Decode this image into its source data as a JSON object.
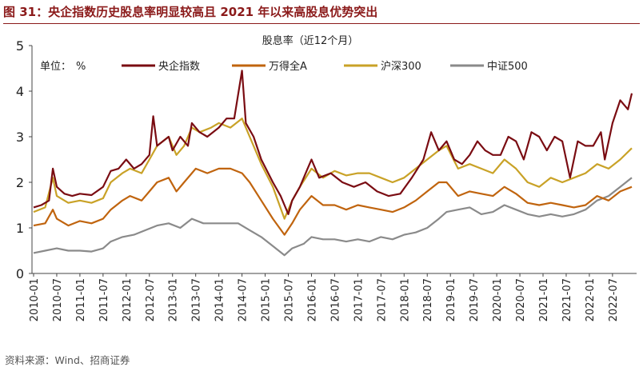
{
  "header": {
    "title": "图 31：央企指数历史股息率明显较高且 2021 年以来高股息优势突出"
  },
  "footer": {
    "source": "资料来源：Wind、招商证券"
  },
  "chart_data": {
    "type": "line",
    "title": "股息率（近12个月）",
    "unit_label": "单位：",
    "unit": "%",
    "ylim": [
      0,
      5
    ],
    "yticks": [
      0,
      1,
      2,
      3,
      4,
      5
    ],
    "x_range": [
      "2010-01",
      "2022-12"
    ],
    "xtick_labels": [
      "2010-01",
      "2010-07",
      "2011-01",
      "2011-07",
      "2012-01",
      "2012-07",
      "2013-01",
      "2013-07",
      "2014-01",
      "2014-07",
      "2015-01",
      "2015-07",
      "2016-01",
      "2016-07",
      "2017-01",
      "2017-07",
      "2018-01",
      "2018-07",
      "2019-01",
      "2019-07",
      "2020-01",
      "2020-07",
      "2021-01",
      "2021-07",
      "2022-01",
      "2022-07"
    ],
    "grid": false,
    "legend_position": "top",
    "series": [
      {
        "name": "央企指数",
        "color": "#7a0c12",
        "points": [
          [
            "2010-01",
            1.45
          ],
          [
            "2010-03",
            1.5
          ],
          [
            "2010-05",
            1.6
          ],
          [
            "2010-06",
            2.3
          ],
          [
            "2010-07",
            1.9
          ],
          [
            "2010-09",
            1.75
          ],
          [
            "2010-11",
            1.7
          ],
          [
            "2011-01",
            1.75
          ],
          [
            "2011-04",
            1.72
          ],
          [
            "2011-07",
            1.9
          ],
          [
            "2011-09",
            2.25
          ],
          [
            "2011-11",
            2.3
          ],
          [
            "2012-01",
            2.5
          ],
          [
            "2012-03",
            2.3
          ],
          [
            "2012-05",
            2.4
          ],
          [
            "2012-07",
            2.6
          ],
          [
            "2012-08",
            3.45
          ],
          [
            "2012-09",
            2.8
          ],
          [
            "2012-12",
            3.0
          ],
          [
            "2013-01",
            2.7
          ],
          [
            "2013-03",
            3.0
          ],
          [
            "2013-05",
            2.8
          ],
          [
            "2013-06",
            3.3
          ],
          [
            "2013-08",
            3.1
          ],
          [
            "2013-10",
            3.0
          ],
          [
            "2014-01",
            3.2
          ],
          [
            "2014-03",
            3.4
          ],
          [
            "2014-05",
            3.4
          ],
          [
            "2014-07",
            4.45
          ],
          [
            "2014-08",
            3.3
          ],
          [
            "2014-10",
            3.0
          ],
          [
            "2014-12",
            2.5
          ],
          [
            "2015-03",
            2.0
          ],
          [
            "2015-05",
            1.7
          ],
          [
            "2015-06",
            1.5
          ],
          [
            "2015-07",
            1.3
          ],
          [
            "2015-08",
            1.6
          ],
          [
            "2015-10",
            1.9
          ],
          [
            "2015-12",
            2.3
          ],
          [
            "2016-01",
            2.5
          ],
          [
            "2016-03",
            2.1
          ],
          [
            "2016-06",
            2.2
          ],
          [
            "2016-09",
            2.0
          ],
          [
            "2016-12",
            1.9
          ],
          [
            "2017-03",
            2.0
          ],
          [
            "2017-06",
            1.8
          ],
          [
            "2017-09",
            1.7
          ],
          [
            "2017-12",
            1.75
          ],
          [
            "2018-03",
            2.1
          ],
          [
            "2018-06",
            2.5
          ],
          [
            "2018-08",
            3.1
          ],
          [
            "2018-10",
            2.7
          ],
          [
            "2018-12",
            2.9
          ],
          [
            "2019-02",
            2.5
          ],
          [
            "2019-04",
            2.4
          ],
          [
            "2019-06",
            2.6
          ],
          [
            "2019-08",
            2.9
          ],
          [
            "2019-10",
            2.7
          ],
          [
            "2019-12",
            2.6
          ],
          [
            "2020-02",
            2.6
          ],
          [
            "2020-04",
            3.0
          ],
          [
            "2020-06",
            2.9
          ],
          [
            "2020-08",
            2.5
          ],
          [
            "2020-10",
            3.1
          ],
          [
            "2020-12",
            3.0
          ],
          [
            "2021-02",
            2.7
          ],
          [
            "2021-04",
            3.0
          ],
          [
            "2021-06",
            2.9
          ],
          [
            "2021-08",
            2.1
          ],
          [
            "2021-10",
            2.9
          ],
          [
            "2021-12",
            2.8
          ],
          [
            "2022-02",
            2.8
          ],
          [
            "2022-04",
            3.1
          ],
          [
            "2022-05",
            2.5
          ],
          [
            "2022-07",
            3.3
          ],
          [
            "2022-09",
            3.8
          ],
          [
            "2022-11",
            3.6
          ],
          [
            "2022-12",
            3.95
          ]
        ]
      },
      {
        "name": "万得全A",
        "color": "#c0640e",
        "points": [
          [
            "2010-01",
            1.05
          ],
          [
            "2010-04",
            1.1
          ],
          [
            "2010-06",
            1.4
          ],
          [
            "2010-07",
            1.2
          ],
          [
            "2010-10",
            1.05
          ],
          [
            "2011-01",
            1.15
          ],
          [
            "2011-04",
            1.1
          ],
          [
            "2011-07",
            1.2
          ],
          [
            "2011-09",
            1.4
          ],
          [
            "2011-12",
            1.6
          ],
          [
            "2012-02",
            1.7
          ],
          [
            "2012-05",
            1.6
          ],
          [
            "2012-07",
            1.8
          ],
          [
            "2012-09",
            2.0
          ],
          [
            "2012-12",
            2.1
          ],
          [
            "2013-02",
            1.8
          ],
          [
            "2013-04",
            2.0
          ],
          [
            "2013-06",
            2.2
          ],
          [
            "2013-07",
            2.3
          ],
          [
            "2013-10",
            2.2
          ],
          [
            "2014-01",
            2.3
          ],
          [
            "2014-04",
            2.3
          ],
          [
            "2014-07",
            2.2
          ],
          [
            "2014-09",
            2.0
          ],
          [
            "2014-12",
            1.6
          ],
          [
            "2015-03",
            1.2
          ],
          [
            "2015-06",
            0.85
          ],
          [
            "2015-08",
            1.1
          ],
          [
            "2015-10",
            1.4
          ],
          [
            "2016-01",
            1.7
          ],
          [
            "2016-04",
            1.5
          ],
          [
            "2016-07",
            1.5
          ],
          [
            "2016-10",
            1.4
          ],
          [
            "2017-01",
            1.5
          ],
          [
            "2017-04",
            1.45
          ],
          [
            "2017-07",
            1.4
          ],
          [
            "2017-10",
            1.35
          ],
          [
            "2018-01",
            1.45
          ],
          [
            "2018-04",
            1.6
          ],
          [
            "2018-07",
            1.8
          ],
          [
            "2018-10",
            2.0
          ],
          [
            "2018-12",
            2.0
          ],
          [
            "2019-03",
            1.7
          ],
          [
            "2019-06",
            1.8
          ],
          [
            "2019-09",
            1.75
          ],
          [
            "2019-12",
            1.7
          ],
          [
            "2020-03",
            1.9
          ],
          [
            "2020-06",
            1.75
          ],
          [
            "2020-09",
            1.55
          ],
          [
            "2020-12",
            1.5
          ],
          [
            "2021-03",
            1.55
          ],
          [
            "2021-06",
            1.5
          ],
          [
            "2021-09",
            1.45
          ],
          [
            "2021-12",
            1.5
          ],
          [
            "2022-03",
            1.7
          ],
          [
            "2022-06",
            1.6
          ],
          [
            "2022-09",
            1.8
          ],
          [
            "2022-12",
            1.9
          ]
        ]
      },
      {
        "name": "沪深300",
        "color": "#c9a227",
        "points": [
          [
            "2010-01",
            1.35
          ],
          [
            "2010-04",
            1.45
          ],
          [
            "2010-06",
            2.1
          ],
          [
            "2010-07",
            1.7
          ],
          [
            "2010-10",
            1.55
          ],
          [
            "2011-01",
            1.6
          ],
          [
            "2011-04",
            1.55
          ],
          [
            "2011-07",
            1.65
          ],
          [
            "2011-09",
            2.0
          ],
          [
            "2011-12",
            2.2
          ],
          [
            "2012-02",
            2.3
          ],
          [
            "2012-05",
            2.2
          ],
          [
            "2012-07",
            2.5
          ],
          [
            "2012-09",
            2.8
          ],
          [
            "2012-12",
            3.0
          ],
          [
            "2013-02",
            2.6
          ],
          [
            "2013-04",
            2.8
          ],
          [
            "2013-06",
            3.2
          ],
          [
            "2013-08",
            3.1
          ],
          [
            "2013-11",
            3.2
          ],
          [
            "2014-01",
            3.3
          ],
          [
            "2014-04",
            3.2
          ],
          [
            "2014-07",
            3.4
          ],
          [
            "2014-09",
            3.0
          ],
          [
            "2014-12",
            2.4
          ],
          [
            "2015-03",
            1.9
          ],
          [
            "2015-06",
            1.2
          ],
          [
            "2015-08",
            1.6
          ],
          [
            "2015-10",
            1.9
          ],
          [
            "2016-01",
            2.3
          ],
          [
            "2016-04",
            2.1
          ],
          [
            "2016-07",
            2.25
          ],
          [
            "2016-10",
            2.15
          ],
          [
            "2017-01",
            2.2
          ],
          [
            "2017-04",
            2.2
          ],
          [
            "2017-07",
            2.1
          ],
          [
            "2017-10",
            2.0
          ],
          [
            "2018-01",
            2.1
          ],
          [
            "2018-04",
            2.3
          ],
          [
            "2018-07",
            2.5
          ],
          [
            "2018-10",
            2.7
          ],
          [
            "2018-12",
            2.8
          ],
          [
            "2019-03",
            2.3
          ],
          [
            "2019-06",
            2.4
          ],
          [
            "2019-09",
            2.3
          ],
          [
            "2019-12",
            2.2
          ],
          [
            "2020-03",
            2.5
          ],
          [
            "2020-06",
            2.3
          ],
          [
            "2020-09",
            2.0
          ],
          [
            "2020-12",
            1.9
          ],
          [
            "2021-03",
            2.1
          ],
          [
            "2021-06",
            2.0
          ],
          [
            "2021-09",
            2.1
          ],
          [
            "2021-12",
            2.2
          ],
          [
            "2022-03",
            2.4
          ],
          [
            "2022-06",
            2.3
          ],
          [
            "2022-09",
            2.5
          ],
          [
            "2022-12",
            2.75
          ]
        ]
      },
      {
        "name": "中证500",
        "color": "#8a8a8a",
        "points": [
          [
            "2010-01",
            0.45
          ],
          [
            "2010-04",
            0.5
          ],
          [
            "2010-07",
            0.55
          ],
          [
            "2010-10",
            0.5
          ],
          [
            "2011-01",
            0.5
          ],
          [
            "2011-04",
            0.48
          ],
          [
            "2011-07",
            0.55
          ],
          [
            "2011-09",
            0.7
          ],
          [
            "2011-12",
            0.8
          ],
          [
            "2012-03",
            0.85
          ],
          [
            "2012-06",
            0.95
          ],
          [
            "2012-09",
            1.05
          ],
          [
            "2012-12",
            1.1
          ],
          [
            "2013-03",
            1.0
          ],
          [
            "2013-06",
            1.2
          ],
          [
            "2013-09",
            1.1
          ],
          [
            "2013-12",
            1.1
          ],
          [
            "2014-03",
            1.1
          ],
          [
            "2014-06",
            1.1
          ],
          [
            "2014-09",
            0.95
          ],
          [
            "2014-12",
            0.8
          ],
          [
            "2015-03",
            0.6
          ],
          [
            "2015-06",
            0.4
          ],
          [
            "2015-08",
            0.55
          ],
          [
            "2015-11",
            0.65
          ],
          [
            "2016-01",
            0.8
          ],
          [
            "2016-04",
            0.75
          ],
          [
            "2016-07",
            0.75
          ],
          [
            "2016-10",
            0.7
          ],
          [
            "2017-01",
            0.75
          ],
          [
            "2017-04",
            0.7
          ],
          [
            "2017-07",
            0.8
          ],
          [
            "2017-10",
            0.75
          ],
          [
            "2018-01",
            0.85
          ],
          [
            "2018-04",
            0.9
          ],
          [
            "2018-07",
            1.0
          ],
          [
            "2018-10",
            1.2
          ],
          [
            "2018-12",
            1.35
          ],
          [
            "2019-03",
            1.4
          ],
          [
            "2019-06",
            1.45
          ],
          [
            "2019-09",
            1.3
          ],
          [
            "2019-12",
            1.35
          ],
          [
            "2020-03",
            1.5
          ],
          [
            "2020-06",
            1.4
          ],
          [
            "2020-09",
            1.3
          ],
          [
            "2020-12",
            1.25
          ],
          [
            "2021-03",
            1.3
          ],
          [
            "2021-06",
            1.25
          ],
          [
            "2021-09",
            1.3
          ],
          [
            "2021-12",
            1.4
          ],
          [
            "2022-03",
            1.6
          ],
          [
            "2022-06",
            1.7
          ],
          [
            "2022-09",
            1.9
          ],
          [
            "2022-12",
            2.1
          ]
        ]
      }
    ]
  }
}
